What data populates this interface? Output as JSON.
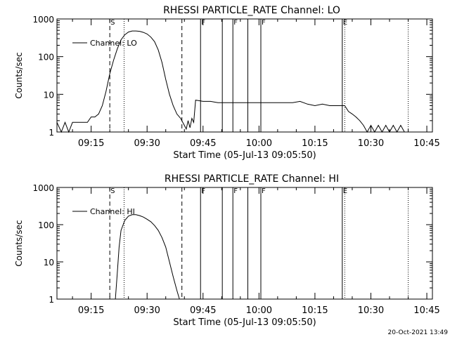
{
  "footer": {
    "timestamp": "20-Oct-2021 13:49"
  },
  "chart_data": [
    {
      "type": "line",
      "title": "RHESSI PARTICLE_RATE Channel: LO",
      "xlabel": "Start Time (05-Jul-13 09:05:50)",
      "ylabel": "Counts/sec",
      "yscale": "log",
      "ylim": [
        1,
        1000
      ],
      "y_ticks": [
        {
          "value": 1,
          "label": "1"
        },
        {
          "value": 10,
          "label": "10"
        },
        {
          "value": 100,
          "label": "100"
        },
        {
          "value": 1000,
          "label": "1000"
        }
      ],
      "xlim": [
        "09:05:50",
        "10:46:30"
      ],
      "x_ticks": [
        "09:15",
        "09:30",
        "09:45",
        "10:00",
        "10:15",
        "10:30",
        "10:45"
      ],
      "legend": {
        "placement": "top-left",
        "label": "Channel: LO"
      },
      "series": [
        {
          "name": "Channel: LO",
          "x": [
            "09:05:50",
            "09:07:00",
            "09:08:00",
            "09:09:00",
            "09:10:00",
            "09:11:00",
            "09:12:00",
            "09:13:00",
            "09:14:00",
            "09:15:00",
            "09:16:00",
            "09:17:00",
            "09:18:00",
            "09:19:00",
            "09:20:00",
            "09:21:00",
            "09:22:00",
            "09:23:00",
            "09:24:00",
            "09:25:00",
            "09:26:00",
            "09:27:00",
            "09:28:00",
            "09:29:00",
            "09:30:00",
            "09:31:00",
            "09:32:00",
            "09:33:00",
            "09:34:00",
            "09:35:00",
            "09:36:00",
            "09:37:00",
            "09:38:00",
            "09:39:00",
            "09:40:00",
            "09:40:30",
            "09:41:00",
            "09:41:30",
            "09:42:00",
            "09:42:30",
            "09:43:00",
            "09:45:00",
            "09:47:00",
            "09:49:00",
            "09:51:00",
            "09:53:00",
            "09:55:00",
            "09:57:00",
            "09:59:00",
            "10:01:00",
            "10:03:00",
            "10:05:00",
            "10:07:00",
            "10:09:00",
            "10:11:00",
            "10:13:00",
            "10:15:00",
            "10:17:00",
            "10:19:00",
            "10:21:00",
            "10:23:00",
            "10:24:00",
            "10:25:00",
            "10:26:00",
            "10:27:00",
            "10:28:00",
            "10:29:00",
            "10:30:00",
            "10:31:00",
            "10:32:00",
            "10:33:00",
            "10:34:00",
            "10:35:00",
            "10:36:00",
            "10:37:00",
            "10:38:00",
            "10:39:00",
            "10:40:00"
          ],
          "values": [
            1.8,
            1.0,
            1.8,
            1.0,
            1.8,
            1.8,
            1.8,
            1.8,
            1.8,
            2.5,
            2.5,
            3.0,
            5,
            12,
            35,
            80,
            160,
            280,
            380,
            450,
            480,
            480,
            470,
            440,
            400,
            330,
            250,
            150,
            70,
            25,
            10,
            5,
            3,
            2.3,
            1.5,
            1.2,
            2.0,
            1.3,
            2.3,
            1.8,
            7,
            6.5,
            6.5,
            6,
            6,
            6,
            6,
            6,
            6,
            6,
            6,
            6,
            6,
            6,
            6.5,
            5.5,
            5,
            5.5,
            5,
            5,
            5,
            3.5,
            3,
            2.5,
            2,
            1.5,
            1.0,
            1.5,
            1.0,
            1.5,
            1.0,
            1.5,
            1.0,
            1.5,
            1.0,
            1.5,
            1.0,
            1.0
          ]
        }
      ],
      "markers": [
        {
          "label": "S",
          "time": "09:20:00",
          "style": "dashed"
        },
        {
          "label": "",
          "time": "09:23:50",
          "style": "dotted"
        },
        {
          "label": "",
          "time": "09:39:20",
          "style": "dashed"
        },
        {
          "label": "F",
          "time": "09:44:20",
          "style": "solid"
        },
        {
          "label": "",
          "time": "09:50:10",
          "style": "solid"
        },
        {
          "label": "F",
          "time": "09:53:00",
          "style": "solid"
        },
        {
          "label": "",
          "time": "09:57:00",
          "style": "solid"
        },
        {
          "label": "F",
          "time": "10:00:30",
          "style": "solid"
        },
        {
          "label": "E",
          "time": "10:22:20",
          "style": "solid"
        },
        {
          "label": "",
          "time": "10:23:00",
          "style": "dotted"
        },
        {
          "label": "",
          "time": "10:40:00",
          "style": "dotted"
        }
      ]
    },
    {
      "type": "line",
      "title": "RHESSI PARTICLE_RATE Channel: HI",
      "xlabel": "Start Time (05-Jul-13 09:05:50)",
      "ylabel": "Counts/sec",
      "yscale": "log",
      "ylim": [
        1,
        1000
      ],
      "y_ticks": [
        {
          "value": 1,
          "label": "1"
        },
        {
          "value": 10,
          "label": "10"
        },
        {
          "value": 100,
          "label": "100"
        },
        {
          "value": 1000,
          "label": "1000"
        }
      ],
      "xlim": [
        "09:05:50",
        "10:46:30"
      ],
      "x_ticks": [
        "09:15",
        "09:30",
        "09:45",
        "10:00",
        "10:15",
        "10:30",
        "10:45"
      ],
      "legend": {
        "placement": "top-left",
        "label": "Channel: HI"
      },
      "series": [
        {
          "name": "Channel: HI",
          "x": [
            "09:21:30",
            "09:22:00",
            "09:22:30",
            "09:23:00",
            "09:24:00",
            "09:25:00",
            "09:26:00",
            "09:27:00",
            "09:28:00",
            "09:29:00",
            "09:30:00",
            "09:31:00",
            "09:32:00",
            "09:33:00",
            "09:34:00",
            "09:35:00",
            "09:36:00",
            "09:37:00",
            "09:38:00",
            "09:38:40"
          ],
          "values": [
            1.0,
            5,
            25,
            70,
            130,
            170,
            185,
            185,
            175,
            160,
            140,
            120,
            95,
            70,
            45,
            25,
            10,
            4,
            1.7,
            1.0
          ]
        }
      ],
      "markers": [
        {
          "label": "S",
          "time": "09:20:00",
          "style": "dashed"
        },
        {
          "label": "",
          "time": "09:23:50",
          "style": "dotted"
        },
        {
          "label": "",
          "time": "09:39:20",
          "style": "dashed"
        },
        {
          "label": "F",
          "time": "09:44:20",
          "style": "solid"
        },
        {
          "label": "",
          "time": "09:50:10",
          "style": "solid"
        },
        {
          "label": "F",
          "time": "09:53:00",
          "style": "solid"
        },
        {
          "label": "",
          "time": "09:57:00",
          "style": "solid"
        },
        {
          "label": "F",
          "time": "10:00:30",
          "style": "solid"
        },
        {
          "label": "E",
          "time": "10:22:20",
          "style": "solid"
        },
        {
          "label": "",
          "time": "10:23:00",
          "style": "dotted"
        },
        {
          "label": "",
          "time": "10:40:00",
          "style": "dotted"
        }
      ]
    }
  ]
}
